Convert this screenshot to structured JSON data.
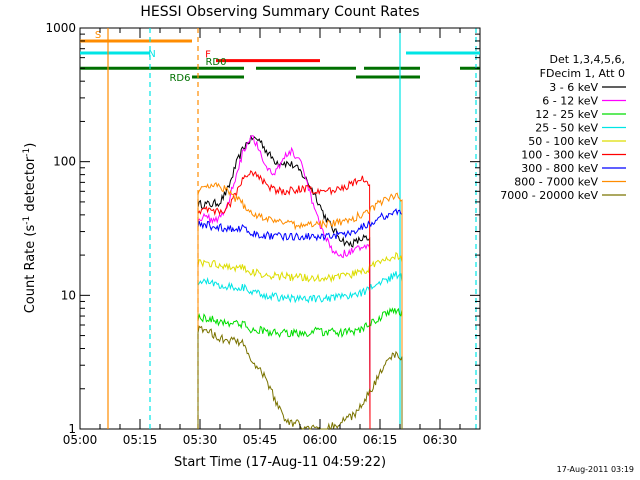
{
  "chart_data": {
    "type": "line",
    "title": "HESSI Observing Summary Count Rates",
    "xlabel": "Start Time (17-Aug-11 04:59:22)",
    "ylabel_main": "Count Rate (s",
    "ylabel_sup1": "-1",
    "ylabel_mid": " detector",
    "ylabel_sup2": "-1",
    "ylabel_end": ")",
    "timestamp": "17-Aug-2011 03:19",
    "x_unit": "minutes after 05:00 UT",
    "xlim": [
      0,
      100
    ],
    "ylim": [
      1,
      1000
    ],
    "y_scale": "log",
    "x_ticks": [
      {
        "v": 0,
        "label": "05:00"
      },
      {
        "v": 15,
        "label": "05:15"
      },
      {
        "v": 30,
        "label": "05:30"
      },
      {
        "v": 45,
        "label": "05:45"
      },
      {
        "v": 60,
        "label": "06:00"
      },
      {
        "v": 75,
        "label": "06:15"
      },
      {
        "v": 90,
        "label": "06:30"
      }
    ],
    "y_ticks": [
      {
        "v": 1,
        "label": "1"
      },
      {
        "v": 10,
        "label": "10"
      },
      {
        "v": 100,
        "label": "100"
      },
      {
        "v": 1000,
        "label": "1000"
      }
    ],
    "legend": {
      "header1": "Det 1,3,4,5,6,",
      "header2": "FDecim 1, Att 0",
      "placement": "right"
    },
    "series": [
      {
        "name": "3 - 6 keV",
        "color": "#000000",
        "x": [
          29.5,
          31,
          33,
          35,
          37,
          39,
          41,
          43,
          45,
          47,
          49,
          51,
          53,
          55,
          57,
          59,
          61,
          63,
          65,
          67,
          69,
          71,
          72.5
        ],
        "y": [
          48,
          48,
          48,
          50,
          62,
          95,
          130,
          150,
          145,
          115,
          100,
          98,
          95,
          85,
          70,
          55,
          40,
          32,
          27,
          24,
          25,
          27,
          25
        ]
      },
      {
        "name": "6 - 12 keV",
        "color": "#ff00ff",
        "x": [
          29.5,
          31,
          33,
          35,
          37,
          39,
          41,
          43,
          45,
          47,
          49,
          51,
          53,
          55,
          57,
          59,
          61,
          63,
          65,
          67,
          69,
          71,
          72.5
        ],
        "y": [
          38,
          38,
          37,
          38,
          48,
          80,
          125,
          160,
          120,
          85,
          85,
          108,
          120,
          100,
          65,
          40,
          28,
          22,
          20,
          21,
          22,
          23,
          22
        ]
      },
      {
        "name": "12 - 25 keV",
        "color": "#00dd00",
        "x": [
          29.5,
          31,
          33,
          35,
          37,
          39,
          41,
          43,
          45,
          47,
          49,
          51,
          53,
          55,
          57,
          59,
          61,
          63,
          65,
          67,
          69,
          71,
          73,
          75,
          77,
          79,
          80.5
        ],
        "y": [
          6.8,
          6.8,
          6.6,
          6.3,
          6.3,
          6.2,
          6.0,
          5.5,
          5.5,
          5.3,
          5.2,
          5.2,
          5.2,
          5.2,
          5.2,
          5.4,
          5.3,
          5.3,
          5.2,
          5.3,
          5.4,
          5.7,
          6.2,
          6.8,
          7.4,
          7.8,
          7.4
        ]
      },
      {
        "name": "25 - 50 keV",
        "color": "#00e5e5",
        "x": [
          29.5,
          31,
          33,
          35,
          37,
          39,
          41,
          43,
          45,
          47,
          49,
          51,
          53,
          55,
          57,
          59,
          61,
          63,
          65,
          67,
          69,
          71,
          73,
          75,
          77,
          79,
          80.5
        ],
        "y": [
          12.5,
          12.6,
          12.4,
          12,
          11.7,
          11.6,
          11.4,
          10.4,
          10.2,
          10,
          9.7,
          9.6,
          9.5,
          9.4,
          9.4,
          9.4,
          9.4,
          9.5,
          9.6,
          9.8,
          10,
          10.7,
          11.5,
          12.4,
          13.3,
          14.2,
          13.5
        ]
      },
      {
        "name": "50 - 100 keV",
        "color": "#dddd00",
        "x": [
          29.5,
          31,
          33,
          35,
          37,
          39,
          41,
          43,
          45,
          47,
          49,
          51,
          53,
          55,
          57,
          59,
          61,
          63,
          65,
          67,
          69,
          71,
          73,
          75,
          77,
          79,
          80.5
        ],
        "y": [
          17.5,
          17.6,
          17.3,
          16.8,
          16.5,
          16.3,
          16,
          14.8,
          14.5,
          14.3,
          14,
          13.8,
          13.7,
          13.6,
          13.5,
          13.6,
          13.6,
          13.7,
          13.8,
          14.1,
          14.5,
          15.3,
          16.4,
          17.6,
          18.7,
          19.7,
          18.5
        ]
      },
      {
        "name": "100 - 300 keV",
        "color": "#ff0000",
        "x": [
          29.5,
          31,
          33,
          35,
          37,
          39,
          41,
          43,
          45,
          47,
          49,
          51,
          53,
          55,
          57,
          59,
          61,
          63,
          65,
          67,
          69,
          71,
          72.5
        ],
        "y": [
          43,
          44,
          43,
          42,
          46,
          58,
          75,
          85,
          75,
          65,
          60,
          60,
          61,
          63,
          62,
          60,
          60,
          61,
          63,
          66,
          70,
          74,
          65
        ]
      },
      {
        "name": "300 - 800 keV",
        "color": "#0000ff",
        "x": [
          29.5,
          31,
          33,
          35,
          37,
          39,
          41,
          43,
          45,
          47,
          49,
          51,
          53,
          55,
          57,
          59,
          61,
          63,
          65,
          67,
          69,
          71,
          73,
          75,
          77,
          79,
          80.5
        ],
        "y": [
          34,
          34,
          33,
          32,
          31.5,
          31.5,
          31.5,
          29,
          28.5,
          28,
          27.5,
          27.5,
          27.5,
          27.5,
          27.5,
          27.5,
          27.5,
          28,
          28.5,
          29.5,
          31,
          33,
          35.5,
          38,
          40.5,
          42.5,
          40
        ]
      },
      {
        "name": "800 - 7000 keV",
        "color": "#ff8c00",
        "x": [
          29.5,
          31,
          33,
          35,
          37,
          39,
          41,
          43,
          45,
          47,
          49,
          51,
          53,
          55,
          57,
          59,
          61,
          63,
          65,
          67,
          69,
          71,
          73,
          75,
          77,
          79,
          80.5
        ],
        "y": [
          60,
          65,
          68,
          66,
          60,
          53,
          47,
          41,
          39,
          37,
          35.5,
          34.5,
          34,
          33.5,
          33.5,
          33.5,
          34,
          34.5,
          35,
          36.5,
          38.5,
          41.5,
          45,
          49,
          53,
          56,
          50
        ]
      },
      {
        "name": "7000 - 20000 keV",
        "color": "#7a7300",
        "x": [
          29.5,
          31,
          33,
          35,
          37,
          39,
          41,
          43,
          45,
          47,
          49,
          51,
          53,
          55,
          57,
          59,
          61,
          63,
          65,
          67,
          69,
          71,
          73,
          75,
          77,
          79,
          80.5
        ],
        "y": [
          5.5,
          5.6,
          5.2,
          4.8,
          4.6,
          4.5,
          4.3,
          3.2,
          2.8,
          2.2,
          1.6,
          1.2,
          1.1,
          1.1,
          1.0,
          1.0,
          1.0,
          1.05,
          1.1,
          1.2,
          1.3,
          1.6,
          2,
          2.6,
          3.2,
          3.7,
          3.3
        ]
      }
    ],
    "flags": [
      {
        "label": "S",
        "color": "#ff8c00",
        "segments": [
          [
            0,
            28
          ]
        ],
        "label_at": 4.5,
        "value": 800,
        "width": 3
      },
      {
        "label": "N",
        "color": "#00e5e5",
        "segments": [
          [
            0,
            17.5
          ],
          [
            81.5,
            100
          ]
        ],
        "label_at": 18,
        "value": 650,
        "width": 3
      },
      {
        "label": "F",
        "color": "#ff0000",
        "segments": [
          [
            34,
            60
          ]
        ],
        "label_at": 32,
        "value": 570,
        "width": 3
      },
      {
        "label": "RD0",
        "color": "#007000",
        "segments": [
          [
            0,
            41
          ],
          [
            44,
            69
          ],
          [
            71,
            85
          ],
          [
            95,
            100
          ]
        ],
        "label_at": 34,
        "value": 500,
        "width": 3
      },
      {
        "label": "RD6",
        "color": "#007000",
        "segments": [
          [
            28,
            41
          ],
          [
            69,
            85
          ]
        ],
        "label_at": 25,
        "value": 430,
        "width": 3
      }
    ],
    "vlines": [
      {
        "v": 7,
        "color": "#ff8c00",
        "dash": false
      },
      {
        "v": 17.5,
        "color": "#00e5e5",
        "dash": true
      },
      {
        "v": 29.5,
        "color": "#ff8c00",
        "dash": true
      },
      {
        "v": 80,
        "color": "#00e5e5",
        "dash": false
      },
      {
        "v": 99,
        "color": "#00e5e5",
        "dash": true
      }
    ]
  }
}
